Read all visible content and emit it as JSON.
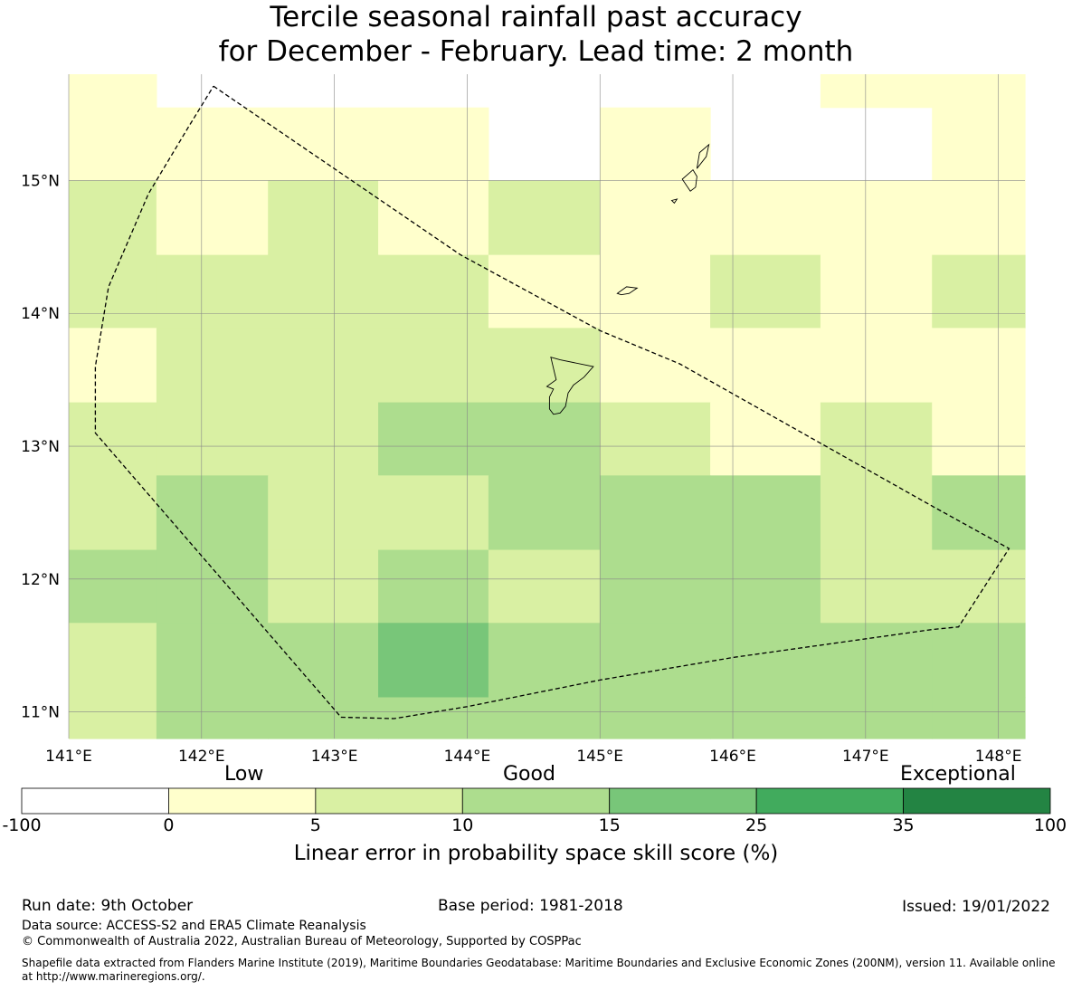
{
  "title": {
    "line1": "Tercile seasonal rainfall past accuracy",
    "line2": "for December - February. Lead time: 2 month"
  },
  "map": {
    "lon_range": [
      141.0,
      148.2
    ],
    "lat_range": [
      10.8,
      15.8
    ],
    "x_ticks": [
      "141°E",
      "142°E",
      "143°E",
      "144°E",
      "145°E",
      "146°E",
      "147°E",
      "148°E"
    ],
    "y_ticks": [
      "15°N",
      "14°N",
      "13°N",
      "12°N",
      "11°N"
    ],
    "cell_edges_lon": [
      141.0,
      141.66,
      142.5,
      143.33,
      144.16,
      145.0,
      145.83,
      146.66,
      147.5,
      148.2
    ],
    "cell_edges_lat": [
      15.8,
      15.55,
      15.0,
      14.44,
      13.89,
      13.33,
      12.78,
      12.22,
      11.67,
      11.11,
      10.8
    ],
    "skill_classes": [
      [
        1,
        -1,
        -1,
        -1,
        -1,
        -1,
        -1,
        1,
        1
      ],
      [
        1,
        1,
        1,
        1,
        -1,
        1,
        -1,
        -1,
        1
      ],
      [
        2,
        1,
        2,
        1,
        2,
        1,
        1,
        1,
        1
      ],
      [
        2,
        2,
        2,
        2,
        1,
        1,
        2,
        1,
        2
      ],
      [
        1,
        2,
        2,
        2,
        2,
        1,
        1,
        1,
        1
      ],
      [
        2,
        2,
        2,
        3,
        3,
        2,
        1,
        2,
        1
      ],
      [
        2,
        3,
        2,
        2,
        3,
        3,
        3,
        2,
        3
      ],
      [
        3,
        3,
        2,
        3,
        2,
        3,
        3,
        2,
        2
      ],
      [
        2,
        3,
        3,
        4,
        3,
        3,
        3,
        3,
        3
      ],
      [
        2,
        3,
        3,
        3,
        3,
        3,
        3,
        3,
        3
      ]
    ],
    "eez_boundary": [
      [
        142.09,
        15.71
      ],
      [
        143.95,
        14.44
      ],
      [
        145.0,
        13.87
      ],
      [
        145.6,
        13.62
      ],
      [
        146.7,
        13.0
      ],
      [
        147.5,
        12.55
      ],
      [
        148.08,
        12.23
      ],
      [
        147.7,
        11.64
      ],
      [
        147.5,
        11.62
      ],
      [
        146.0,
        11.41
      ],
      [
        145.0,
        11.24
      ],
      [
        144.0,
        11.04
      ],
      [
        143.45,
        10.95
      ],
      [
        143.05,
        10.96
      ],
      [
        141.2,
        13.1
      ],
      [
        141.2,
        13.6
      ],
      [
        141.3,
        14.2
      ],
      [
        141.6,
        14.9
      ],
      [
        141.9,
        15.4
      ],
      [
        142.09,
        15.71
      ]
    ],
    "islands": [
      [
        [
          144.63,
          13.67
        ],
        [
          144.7,
          13.65
        ],
        [
          144.95,
          13.6
        ],
        [
          144.88,
          13.52
        ],
        [
          144.8,
          13.46
        ],
        [
          144.76,
          13.4
        ],
        [
          144.74,
          13.3
        ],
        [
          144.7,
          13.25
        ],
        [
          144.65,
          13.24
        ],
        [
          144.62,
          13.28
        ],
        [
          144.62,
          13.37
        ],
        [
          144.65,
          13.43
        ],
        [
          144.6,
          13.45
        ],
        [
          144.67,
          13.5
        ],
        [
          144.63,
          13.67
        ]
      ],
      [
        [
          145.13,
          14.15
        ],
        [
          145.2,
          14.2
        ],
        [
          145.28,
          14.19
        ],
        [
          145.22,
          14.15
        ],
        [
          145.16,
          14.14
        ],
        [
          145.13,
          14.15
        ]
      ],
      [
        [
          145.62,
          15.01
        ],
        [
          145.7,
          15.08
        ],
        [
          145.73,
          15.03
        ],
        [
          145.72,
          14.95
        ],
        [
          145.68,
          14.92
        ],
        [
          145.62,
          15.01
        ]
      ],
      [
        [
          145.75,
          15.21
        ],
        [
          145.82,
          15.27
        ],
        [
          145.8,
          15.18
        ],
        [
          145.73,
          15.09
        ],
        [
          145.75,
          15.21
        ]
      ],
      [
        [
          145.54,
          14.85
        ],
        [
          145.58,
          14.86
        ],
        [
          145.56,
          14.83
        ],
        [
          145.54,
          14.85
        ]
      ]
    ]
  },
  "colorbar": {
    "category_low": "Low",
    "category_good": "Good",
    "category_exceptional": "Exceptional",
    "ticks": [
      "-100",
      "0",
      "5",
      "10",
      "15",
      "25",
      "35",
      "100"
    ],
    "colors": [
      "#ffffff",
      "#ffffcc",
      "#d9f0a3",
      "#addd8e",
      "#78c679",
      "#41ab5d",
      "#238443"
    ],
    "title": "Linear error in probability space skill score (%)"
  },
  "footer": {
    "run_date": "Run date: 9th October",
    "base_period": "Base period: 1981-2018",
    "issued": "Issued: 19/01/2022",
    "data_source": "Data source: ACCESS-S2 and ERA5 Climate Reanalysis",
    "copyright": "© Commonwealth of Australia 2022, Australian Bureau of Meteorology, Supported by COSPPac",
    "shapefile_line1": "Shapefile data extracted from Flanders Marine Institute (2019), Maritime Boundaries Geodatabase: Maritime Boundaries and Exclusive Economic Zones (200NM), version 11. Available online",
    "shapefile_line2": "at http://www.marineregions.org/."
  }
}
